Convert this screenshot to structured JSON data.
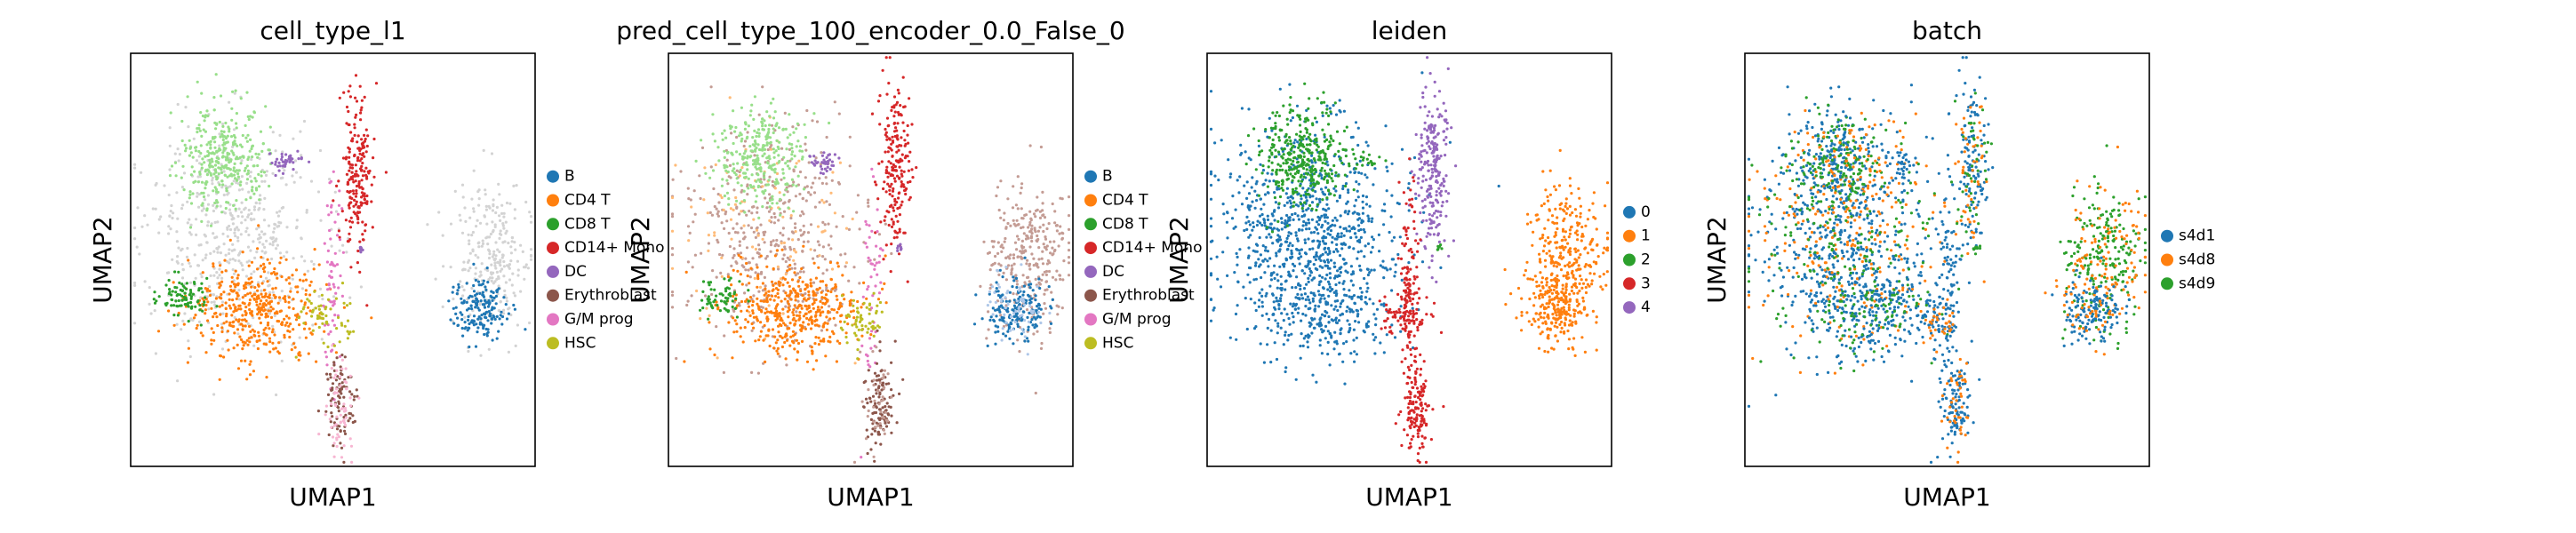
{
  "chart_data": [
    {
      "type": "scatter",
      "title": "cell_type_l1",
      "xlabel": "UMAP1",
      "ylabel": "UMAP2",
      "legend_position": "right",
      "categories": [
        "B",
        "CD4 T",
        "CD8 T",
        "CD14+ Mono",
        "DC",
        "Erythroblast",
        "G/M prog",
        "HSC"
      ],
      "colors": [
        "#1f77b4",
        "#ff7f0e",
        "#2ca02c",
        "#d62728",
        "#9467bd",
        "#8c564b",
        "#e377c2",
        "#bcbd22"
      ]
    },
    {
      "type": "scatter",
      "title": "pred_cell_type_100_encoder_0.0_False_0",
      "xlabel": "UMAP1",
      "ylabel": "UMAP2",
      "legend_position": "right",
      "categories": [
        "B",
        "CD4 T",
        "CD8 T",
        "CD14+ Mono",
        "DC",
        "Erythroblast",
        "G/M prog",
        "HSC"
      ],
      "colors": [
        "#1f77b4",
        "#ff7f0e",
        "#2ca02c",
        "#d62728",
        "#9467bd",
        "#8c564b",
        "#e377c2",
        "#bcbd22"
      ]
    },
    {
      "type": "scatter",
      "title": "leiden",
      "xlabel": "UMAP1",
      "ylabel": "UMAP2",
      "legend_position": "right",
      "categories": [
        "0",
        "1",
        "2",
        "3",
        "4"
      ],
      "colors": [
        "#1f77b4",
        "#ff7f0e",
        "#2ca02c",
        "#d62728",
        "#9467bd"
      ]
    },
    {
      "type": "scatter",
      "title": "batch",
      "xlabel": "UMAP1",
      "ylabel": "UMAP2",
      "legend_position": "right",
      "categories": [
        "s4d1",
        "s4d8",
        "s4d9"
      ],
      "colors": [
        "#1f77b4",
        "#ff7f0e",
        "#2ca02c"
      ]
    }
  ],
  "colors": {
    "light_gray_unassigned": "#d3d3d3",
    "light_green": "#98df8a",
    "light_blue": "#aec7e8",
    "light_orange": "#ffbb78",
    "rosy_brown": "#c49c94",
    "pink": "#f7b6d2",
    "lavender": "#c5b0d5"
  }
}
